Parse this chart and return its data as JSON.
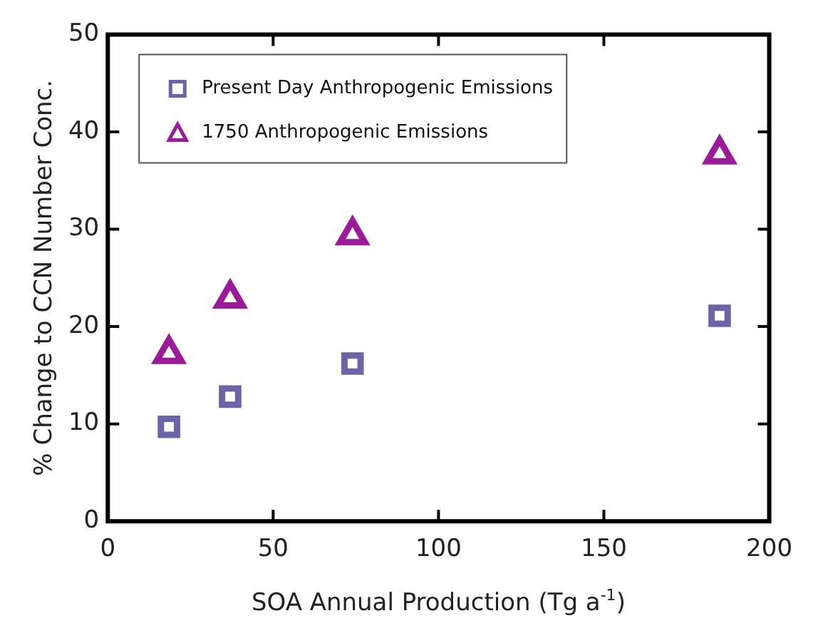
{
  "chart_data": {
    "type": "scatter",
    "xlabel": "SOA Annual Production (Tg a$^{-1}$)",
    "ylabel": "% Change to CCN Number Conc.",
    "xlim": [
      0,
      200
    ],
    "xticks": [
      0,
      50,
      100,
      150,
      200
    ],
    "ylim": [
      0,
      50
    ],
    "yticks": [
      0,
      10,
      20,
      30,
      40,
      50
    ],
    "grid": false,
    "legend": "top left",
    "series": [
      {
        "name": "Present Day Anthropogenic Emissions",
        "color": "#6b64a8",
        "marker": "square",
        "x": [
          18.5,
          37,
          74,
          185
        ],
        "values": [
          9.7,
          12.8,
          16.2,
          21.1
        ]
      },
      {
        "name": "1750 Anthropogenic Emissions",
        "color": "#9a1a9a",
        "marker": "triangle",
        "x": [
          18.5,
          37,
          74,
          185
        ],
        "values": [
          17.2,
          22.9,
          29.4,
          37.7
        ]
      }
    ]
  }
}
